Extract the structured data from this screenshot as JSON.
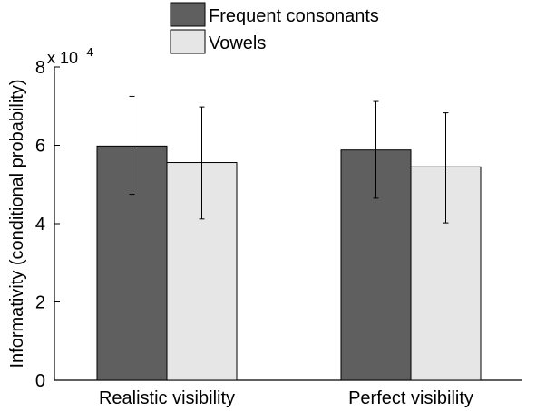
{
  "chart_data": {
    "type": "bar",
    "categories": [
      "Realistic visibility",
      "Perfect visibility"
    ],
    "series": [
      {
        "name": "Frequent consonants",
        "color": "#5f5f5f",
        "values": [
          5.98,
          5.88
        ],
        "error_low": [
          4.75,
          4.65
        ],
        "error_high": [
          7.25,
          7.12
        ]
      },
      {
        "name": "Vowels",
        "color": "#e6e6e6",
        "values": [
          5.56,
          5.45
        ],
        "error_low": [
          4.12,
          4.02
        ],
        "error_high": [
          6.98,
          6.83
        ]
      }
    ],
    "ylabel": "Informativity (conditional probability)",
    "ylim": [
      0,
      8
    ],
    "yticks": [
      "0",
      "2",
      "4",
      "6",
      "8"
    ],
    "scale_label": "x 10",
    "scale_exponent": "-4",
    "legend_position": "top",
    "grid": false
  }
}
